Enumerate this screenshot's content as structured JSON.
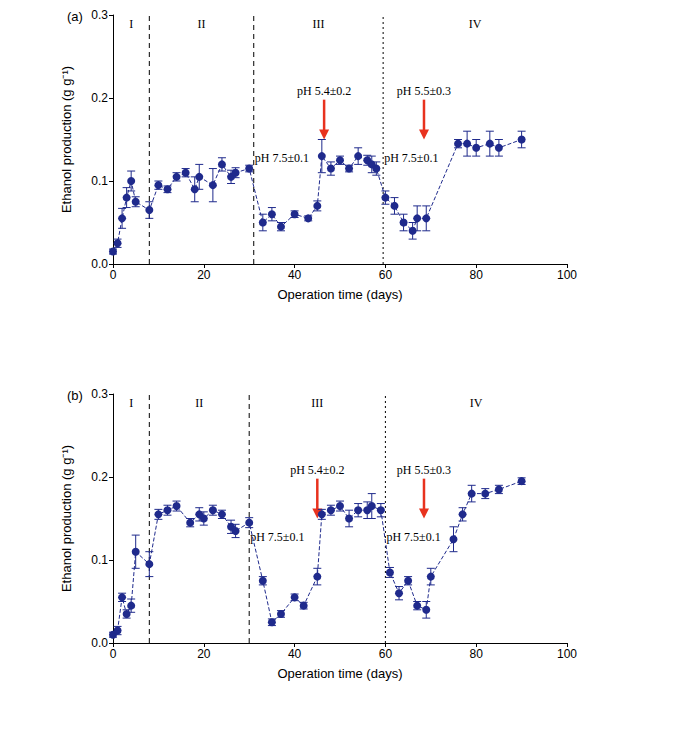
{
  "chart_data": [
    {
      "type": "line",
      "title": "(a)",
      "xlabel": "Operation time (days)",
      "ylabel": "Ethanol production (g g⁻¹)",
      "xlim": [
        0,
        100
      ],
      "xticks": [
        0,
        20,
        40,
        60,
        80,
        100
      ],
      "ylim": [
        0,
        0.3
      ],
      "yticks": [
        {
          "value": 0,
          "label": "0.0"
        },
        0.1,
        0.2,
        0.3
      ],
      "color": "#1f2a8c",
      "marker": "circle",
      "line_style": "dashed",
      "x": [
        0,
        1,
        2,
        3,
        4,
        5,
        8,
        10,
        12,
        14,
        16,
        18,
        19,
        22,
        24,
        26,
        27,
        30,
        33,
        35,
        37,
        40,
        43,
        45,
        46,
        48,
        50,
        52,
        54,
        56,
        57,
        58,
        60,
        62,
        64,
        66,
        67,
        69,
        76,
        78,
        80,
        83,
        85,
        90
      ],
      "values": [
        0.015,
        0.025,
        0.055,
        0.08,
        0.1,
        0.075,
        0.065,
        0.095,
        0.09,
        0.105,
        0.11,
        0.09,
        0.105,
        0.095,
        0.12,
        0.105,
        0.11,
        0.115,
        0.05,
        0.06,
        0.045,
        0.06,
        0.055,
        0.07,
        0.13,
        0.115,
        0.125,
        0.115,
        0.13,
        0.125,
        0.12,
        0.115,
        0.08,
        0.07,
        0.05,
        0.04,
        0.055,
        0.055,
        0.145,
        0.145,
        0.14,
        0.145,
        0.14,
        0.15
      ],
      "errors": [
        0.003,
        0.005,
        0.012,
        0.012,
        0.012,
        0.006,
        0.01,
        0.005,
        0.004,
        0.005,
        0.005,
        0.015,
        0.015,
        0.02,
        0.008,
        0.008,
        0.006,
        0.004,
        0.01,
        0.008,
        0.005,
        0.004,
        0.003,
        0.006,
        0.02,
        0.008,
        0.005,
        0.004,
        0.01,
        0.006,
        0.01,
        0.008,
        0.008,
        0.01,
        0.01,
        0.01,
        0.015,
        0.015,
        0.005,
        0.015,
        0.01,
        0.015,
        0.01,
        0.01
      ],
      "phases": [
        "I",
        "II",
        "III",
        "IV"
      ],
      "boundaries": [
        {
          "x": 8,
          "line_style": "dashed"
        },
        {
          "x": 31,
          "line_style": "dashed"
        },
        {
          "x": 59.5,
          "line_style": "dotted"
        }
      ],
      "condition_labels": [
        {
          "x": 31,
          "text": "pH 7.5±0.1"
        },
        {
          "x": 59.5,
          "text": "pH 7.5±0.1"
        }
      ],
      "arrows": [
        {
          "x": 46.5,
          "text": "pH 5.4±0.2",
          "color": "#e8321e"
        },
        {
          "x": 68.5,
          "text": "pH 5.5±0.3",
          "color": "#e8321e"
        }
      ]
    },
    {
      "type": "line",
      "title": "(b)",
      "xlabel": "Operation time (days)",
      "ylabel": "Ethanol production (g g⁻¹)",
      "xlim": [
        0,
        100
      ],
      "xticks": [
        0,
        20,
        40,
        60,
        80,
        100
      ],
      "ylim": [
        0,
        0.3
      ],
      "yticks": [
        {
          "value": 0,
          "label": "0.0"
        },
        0.1,
        0.2,
        0.3
      ],
      "color": "#1f2a8c",
      "marker": "circle",
      "line_style": "dashed",
      "x": [
        0,
        1,
        2,
        3,
        4,
        5,
        8,
        10,
        12,
        14,
        17,
        19,
        20,
        22,
        24,
        26,
        27,
        30,
        33,
        35,
        37,
        40,
        42,
        45,
        46,
        48,
        50,
        52,
        54,
        56,
        57,
        59,
        61,
        63,
        65,
        67,
        69,
        70,
        75,
        77,
        79,
        82,
        85,
        90
      ],
      "values": [
        0.01,
        0.015,
        0.055,
        0.035,
        0.045,
        0.11,
        0.095,
        0.155,
        0.16,
        0.165,
        0.145,
        0.155,
        0.15,
        0.16,
        0.155,
        0.14,
        0.135,
        0.145,
        0.075,
        0.025,
        0.035,
        0.055,
        0.045,
        0.08,
        0.155,
        0.16,
        0.165,
        0.15,
        0.16,
        0.16,
        0.165,
        0.16,
        0.085,
        0.06,
        0.075,
        0.045,
        0.04,
        0.08,
        0.125,
        0.155,
        0.18,
        0.18,
        0.185,
        0.195
      ],
      "errors": [
        0.003,
        0.005,
        0.005,
        0.005,
        0.008,
        0.02,
        0.015,
        0.006,
        0.006,
        0.006,
        0.005,
        0.008,
        0.008,
        0.006,
        0.005,
        0.008,
        0.008,
        0.006,
        0.005,
        0.004,
        0.004,
        0.004,
        0.004,
        0.01,
        0.006,
        0.006,
        0.006,
        0.01,
        0.008,
        0.01,
        0.015,
        0.008,
        0.006,
        0.008,
        0.005,
        0.005,
        0.01,
        0.01,
        0.015,
        0.008,
        0.01,
        0.006,
        0.005,
        0.004
      ],
      "phases": [
        "I",
        "II",
        "III",
        "IV"
      ],
      "boundaries": [
        {
          "x": 8,
          "line_style": "dashed"
        },
        {
          "x": 30,
          "line_style": "dashed"
        },
        {
          "x": 60,
          "line_style": "dotted"
        }
      ],
      "condition_labels": [
        {
          "x": 30,
          "text": "pH 7.5±0.1"
        },
        {
          "x": 60,
          "text": "pH 7.5±0.1"
        }
      ],
      "arrows": [
        {
          "x": 45,
          "text": "pH 5.4±0.2",
          "color": "#e8321e"
        },
        {
          "x": 68.5,
          "text": "pH 5.5±0.3",
          "color": "#e8321e"
        }
      ]
    }
  ]
}
